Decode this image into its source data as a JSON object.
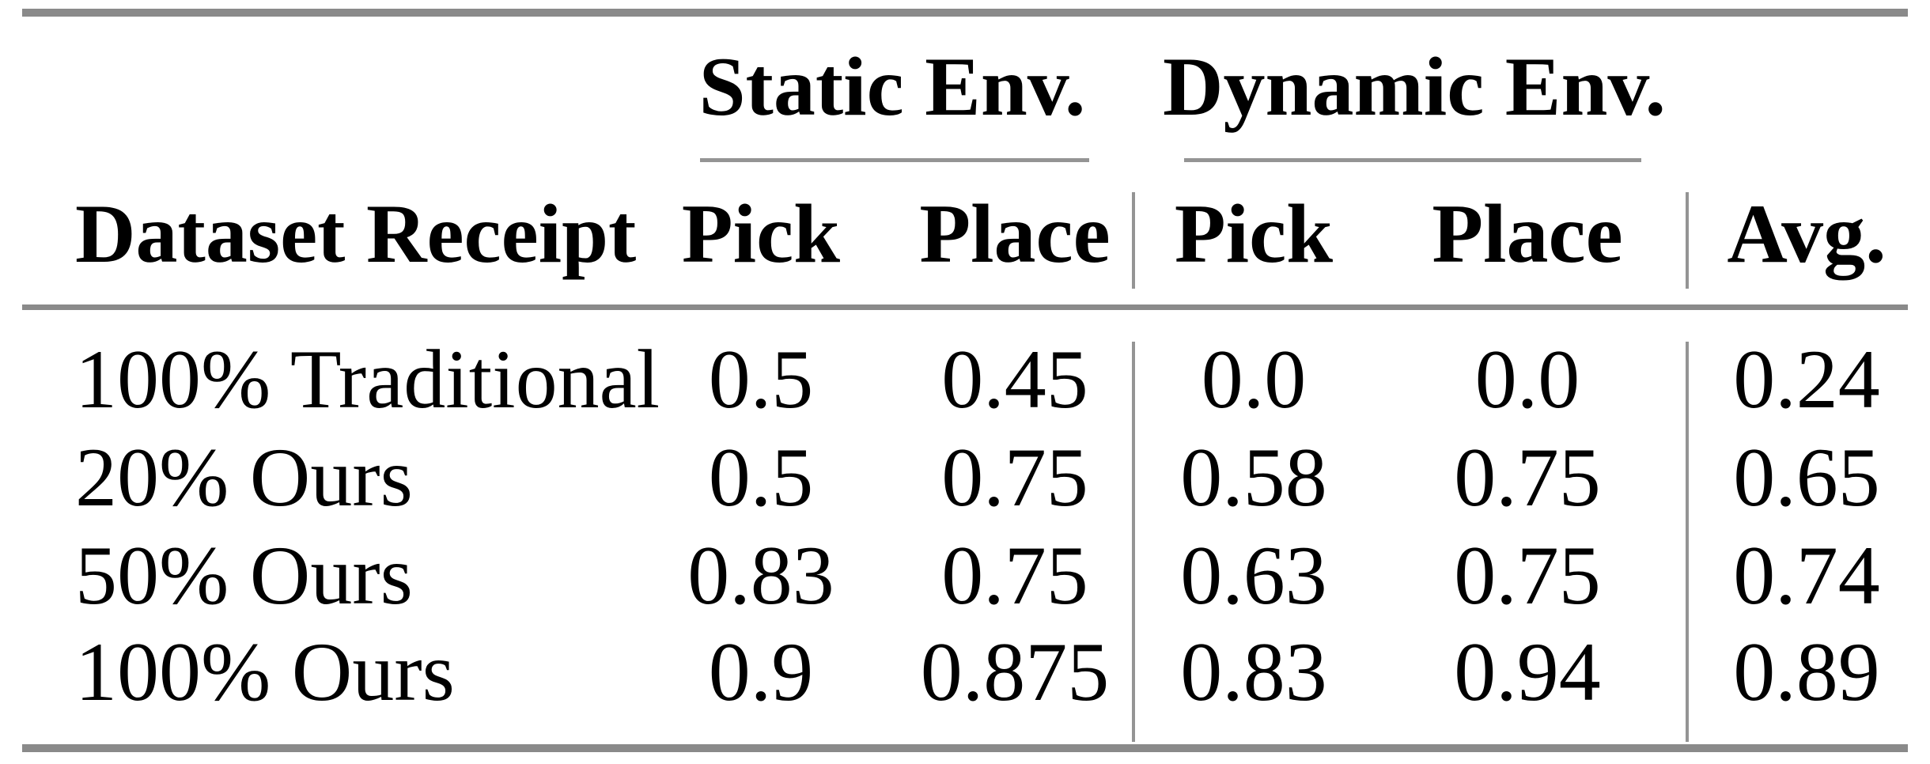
{
  "colors": {
    "background": "#ffffff",
    "text": "#000000",
    "heavy_rule": "#8a8a8a",
    "light_rule": "#949494"
  },
  "table": {
    "group_headers": [
      {
        "label": "Static Env."
      },
      {
        "label": "Dynamic Env."
      }
    ],
    "column_headers": {
      "dataset": "Dataset Receipt",
      "static_pick": "Pick",
      "static_place": "Place",
      "dynamic_pick": "Pick",
      "dynamic_place": "Place",
      "avg": "Avg."
    },
    "rows": [
      {
        "label": "100% Traditional",
        "static_pick": "0.5",
        "static_place": "0.45",
        "dynamic_pick": "0.0",
        "dynamic_place": "0.0",
        "avg": "0.24"
      },
      {
        "label": "20% Ours",
        "static_pick": "0.5",
        "static_place": "0.75",
        "dynamic_pick": "0.58",
        "dynamic_place": "0.75",
        "avg": "0.65"
      },
      {
        "label": "50% Ours",
        "static_pick": "0.83",
        "static_place": "0.75",
        "dynamic_pick": "0.63",
        "dynamic_place": "0.75",
        "avg": "0.74"
      },
      {
        "label": "100% Ours",
        "static_pick": "0.9",
        "static_place": "0.875",
        "dynamic_pick": "0.83",
        "dynamic_place": "0.94",
        "avg": "0.89"
      }
    ]
  },
  "chart_data": {
    "type": "table",
    "title": "",
    "columns": [
      "Dataset Receipt",
      "Static Env. Pick",
      "Static Env. Place",
      "Dynamic Env. Pick",
      "Dynamic Env. Place",
      "Avg."
    ],
    "rows": [
      [
        "100% Traditional",
        0.5,
        0.45,
        0.0,
        0.0,
        0.24
      ],
      [
        "20% Ours",
        0.5,
        0.75,
        0.58,
        0.75,
        0.65
      ],
      [
        "50% Ours",
        0.83,
        0.75,
        0.63,
        0.75,
        0.74
      ],
      [
        "100% Ours",
        0.9,
        0.875,
        0.83,
        0.94,
        0.89
      ]
    ]
  }
}
